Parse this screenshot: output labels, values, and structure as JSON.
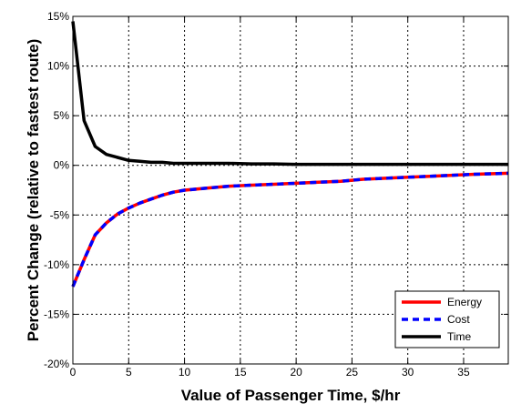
{
  "chart_data": {
    "type": "line",
    "xlabel": "Value of Passenger Time, $/hr",
    "ylabel": "Percent Change (relative to fastest route)",
    "xlim": [
      0,
      39
    ],
    "ylim": [
      -20,
      15
    ],
    "x_ticks": [
      0,
      5,
      10,
      15,
      20,
      25,
      30,
      35
    ],
    "x_tick_labels": [
      "0",
      "5",
      "10",
      "15",
      "20",
      "25",
      "30",
      "35"
    ],
    "y_ticks": [
      15,
      10,
      5,
      0,
      -5,
      -10,
      -15,
      -20
    ],
    "y_tick_labels": [
      "15%",
      "10%",
      "5%",
      "0%",
      "-5%",
      "-10%",
      "-15%",
      "-20%"
    ],
    "grid": true,
    "legend_position": "bottom-right",
    "x": [
      0,
      1,
      2,
      3,
      4,
      5,
      6,
      7,
      8,
      9,
      10,
      12,
      14,
      16,
      18,
      20,
      22,
      24,
      26,
      28,
      30,
      32,
      34,
      36,
      39
    ],
    "series": [
      {
        "name": "Energy",
        "color": "#ff0000",
        "style": "solid",
        "values": [
          -12.2,
          -9.5,
          -7.0,
          -5.8,
          -4.9,
          -4.3,
          -3.8,
          -3.4,
          -3.0,
          -2.7,
          -2.5,
          -2.3,
          -2.1,
          -2.0,
          -1.9,
          -1.8,
          -1.7,
          -1.6,
          -1.4,
          -1.3,
          -1.2,
          -1.1,
          -1.0,
          -0.9,
          -0.8
        ]
      },
      {
        "name": "Cost",
        "color": "#0000ff",
        "style": "dashed",
        "values": [
          -12.2,
          -9.5,
          -7.0,
          -5.8,
          -4.9,
          -4.3,
          -3.8,
          -3.4,
          -3.0,
          -2.7,
          -2.5,
          -2.3,
          -2.1,
          -2.0,
          -1.9,
          -1.8,
          -1.7,
          -1.6,
          -1.4,
          -1.3,
          -1.2,
          -1.1,
          -1.0,
          -0.9,
          -0.8
        ]
      },
      {
        "name": "Time",
        "color": "#000000",
        "style": "solid",
        "values": [
          14.5,
          4.5,
          1.9,
          1.1,
          0.8,
          0.5,
          0.4,
          0.3,
          0.3,
          0.2,
          0.2,
          0.2,
          0.2,
          0.15,
          0.15,
          0.1,
          0.1,
          0.1,
          0.1,
          0.1,
          0.1,
          0.1,
          0.1,
          0.1,
          0.1
        ]
      }
    ]
  }
}
